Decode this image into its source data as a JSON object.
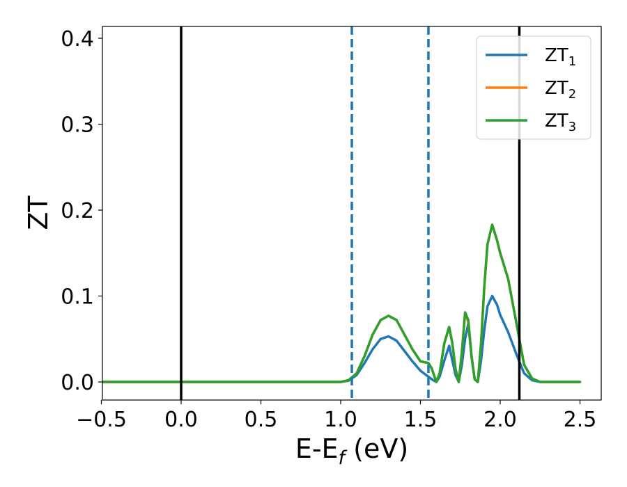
{
  "chart_data": {
    "type": "line",
    "xlabel": "E-E",
    "xlabel_sub": "f",
    "xlabel_unit": " (eV)",
    "ylabel": "ZT",
    "xlim": [
      -0.5,
      2.62
    ],
    "ylim": [
      -0.02,
      0.415
    ],
    "xticks": [
      -0.5,
      0.0,
      0.5,
      1.0,
      1.5,
      2.0,
      2.5
    ],
    "xtick_labels": [
      "−0.5",
      "0.0",
      "0.5",
      "1.0",
      "1.5",
      "2.0",
      "2.5"
    ],
    "yticks": [
      0.0,
      0.1,
      0.2,
      0.3,
      0.4
    ],
    "ytick_labels": [
      "0.0",
      "0.1",
      "0.2",
      "0.3",
      "0.4"
    ],
    "grid": false,
    "legend_position": "top-right",
    "vlines": [
      {
        "x": 0.0,
        "style": "solid",
        "color": "#000000"
      },
      {
        "x": 2.12,
        "style": "solid",
        "color": "#000000"
      },
      {
        "x": 1.07,
        "style": "dashed",
        "color": "#1f77b4"
      },
      {
        "x": 1.55,
        "style": "dashed",
        "color": "#1f77b4"
      }
    ],
    "series": [
      {
        "name": "ZT",
        "sub": "1",
        "color": "#1f77b4",
        "x": [
          -0.5,
          1.0,
          1.05,
          1.1,
          1.15,
          1.2,
          1.25,
          1.3,
          1.35,
          1.4,
          1.45,
          1.5,
          1.55,
          1.58,
          1.6,
          1.62,
          1.65,
          1.68,
          1.7,
          1.72,
          1.74,
          1.76,
          1.78,
          1.8,
          1.82,
          1.84,
          1.86,
          1.88,
          1.9,
          1.92,
          1.95,
          1.98,
          2.0,
          2.05,
          2.1,
          2.15,
          2.2,
          2.25,
          2.3,
          2.5
        ],
        "y": [
          0.0,
          0.0,
          0.0015,
          0.008,
          0.022,
          0.038,
          0.05,
          0.053,
          0.048,
          0.036,
          0.024,
          0.013,
          0.006,
          0.002,
          0.0,
          0.006,
          0.025,
          0.042,
          0.025,
          0.008,
          0.0,
          0.02,
          0.05,
          0.068,
          0.03,
          0.003,
          0.0,
          0.025,
          0.06,
          0.088,
          0.1,
          0.09,
          0.078,
          0.058,
          0.033,
          0.01,
          0.002,
          0.0,
          0.0,
          0.0
        ]
      },
      {
        "name": "ZT",
        "sub": "2",
        "color": "#ff7f0e",
        "x": [
          -0.5,
          1.0,
          1.05,
          1.1,
          1.15,
          1.2,
          1.25,
          1.3,
          1.35,
          1.4,
          1.45,
          1.5,
          1.55,
          1.57,
          1.6,
          1.62,
          1.65,
          1.68,
          1.7,
          1.72,
          1.74,
          1.76,
          1.78,
          1.8,
          1.82,
          1.84,
          1.86,
          1.88,
          1.9,
          1.92,
          1.95,
          1.98,
          2.0,
          2.05,
          2.1,
          2.15,
          2.2,
          2.25,
          2.3,
          2.5
        ],
        "y": [
          0.0,
          0.0,
          0.002,
          0.01,
          0.03,
          0.055,
          0.072,
          0.077,
          0.072,
          0.055,
          0.038,
          0.024,
          0.022,
          0.016,
          0.0,
          0.01,
          0.045,
          0.064,
          0.045,
          0.015,
          0.0,
          0.035,
          0.08,
          0.07,
          0.03,
          0.003,
          0.0,
          0.045,
          0.11,
          0.16,
          0.183,
          0.165,
          0.15,
          0.12,
          0.07,
          0.02,
          0.004,
          0.0,
          0.0,
          0.0
        ]
      },
      {
        "name": "ZT",
        "sub": "3",
        "color": "#2ca02c",
        "x": [
          -0.5,
          1.0,
          1.05,
          1.1,
          1.15,
          1.2,
          1.25,
          1.3,
          1.35,
          1.4,
          1.45,
          1.5,
          1.55,
          1.57,
          1.6,
          1.62,
          1.65,
          1.68,
          1.7,
          1.72,
          1.74,
          1.76,
          1.78,
          1.8,
          1.82,
          1.84,
          1.86,
          1.88,
          1.9,
          1.92,
          1.95,
          1.98,
          2.0,
          2.05,
          2.1,
          2.15,
          2.2,
          2.25,
          2.3,
          2.5
        ],
        "y": [
          0.0,
          0.0,
          0.002,
          0.01,
          0.03,
          0.055,
          0.072,
          0.077,
          0.072,
          0.055,
          0.038,
          0.024,
          0.022,
          0.016,
          0.0,
          0.01,
          0.045,
          0.064,
          0.045,
          0.015,
          0.0,
          0.035,
          0.081,
          0.072,
          0.03,
          0.003,
          0.0,
          0.045,
          0.11,
          0.16,
          0.183,
          0.165,
          0.15,
          0.12,
          0.07,
          0.02,
          0.004,
          0.0,
          0.0,
          0.0
        ]
      }
    ]
  }
}
